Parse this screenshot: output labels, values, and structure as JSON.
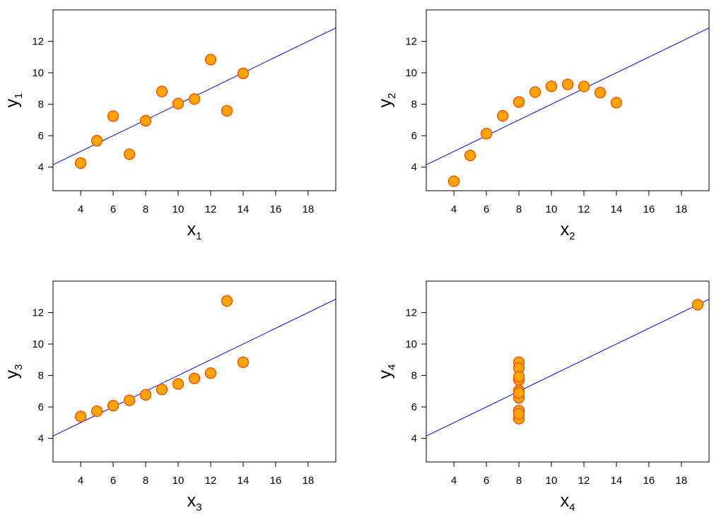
{
  "chart_data": [
    {
      "type": "scatter",
      "x": [
        4,
        5,
        6,
        7,
        8,
        9,
        10,
        11,
        12,
        13,
        14
      ],
      "y": [
        4.26,
        5.68,
        7.24,
        4.82,
        6.95,
        8.81,
        8.04,
        8.33,
        10.84,
        7.58,
        9.96
      ],
      "xlabel": "x",
      "xlabel_sub": "1",
      "ylabel": "y",
      "ylabel_sub": "1",
      "xlim": [
        2.3,
        19.7
      ],
      "ylim": [
        2.5,
        14
      ],
      "xticks": [
        4,
        6,
        8,
        10,
        12,
        14,
        16,
        18
      ],
      "yticks": [
        4,
        6,
        8,
        10,
        12
      ],
      "fit": {
        "intercept": 3.0,
        "slope": 0.5
      },
      "grid": false,
      "colors": {
        "point_fill": "#ffa500",
        "point_edge": "#ff4500",
        "fit_line": "#0000ff"
      }
    },
    {
      "type": "scatter",
      "x": [
        4,
        5,
        6,
        7,
        8,
        9,
        10,
        11,
        12,
        13,
        14
      ],
      "y": [
        3.1,
        4.74,
        6.13,
        7.26,
        8.14,
        8.77,
        9.14,
        9.26,
        9.13,
        8.74,
        8.1
      ],
      "xlabel": "x",
      "xlabel_sub": "2",
      "ylabel": "y",
      "ylabel_sub": "2",
      "xlim": [
        2.3,
        19.7
      ],
      "ylim": [
        2.5,
        14
      ],
      "xticks": [
        4,
        6,
        8,
        10,
        12,
        14,
        16,
        18
      ],
      "yticks": [
        4,
        6,
        8,
        10,
        12
      ],
      "fit": {
        "intercept": 3.0,
        "slope": 0.5
      },
      "grid": false,
      "colors": {
        "point_fill": "#ffa500",
        "point_edge": "#ff4500",
        "fit_line": "#0000ff"
      }
    },
    {
      "type": "scatter",
      "x": [
        4,
        5,
        6,
        7,
        8,
        9,
        10,
        11,
        12,
        13,
        14
      ],
      "y": [
        5.39,
        5.73,
        6.08,
        6.42,
        6.77,
        7.11,
        7.46,
        7.81,
        8.15,
        12.74,
        8.84
      ],
      "xlabel": "x",
      "xlabel_sub": "3",
      "ylabel": "y",
      "ylabel_sub": "3",
      "xlim": [
        2.3,
        19.7
      ],
      "ylim": [
        2.5,
        14
      ],
      "xticks": [
        4,
        6,
        8,
        10,
        12,
        14,
        16,
        18
      ],
      "yticks": [
        4,
        6,
        8,
        10,
        12
      ],
      "fit": {
        "intercept": 3.0,
        "slope": 0.5
      },
      "grid": false,
      "colors": {
        "point_fill": "#ffa500",
        "point_edge": "#ff4500",
        "fit_line": "#0000ff"
      }
    },
    {
      "type": "scatter",
      "x": [
        8,
        8,
        8,
        8,
        8,
        8,
        8,
        8,
        8,
        8,
        19
      ],
      "y": [
        6.58,
        5.76,
        7.71,
        8.84,
        8.47,
        7.04,
        5.25,
        5.56,
        7.91,
        6.89,
        12.5
      ],
      "xlabel": "x",
      "xlabel_sub": "4",
      "ylabel": "y",
      "ylabel_sub": "4",
      "xlim": [
        2.3,
        19.7
      ],
      "ylim": [
        2.5,
        14
      ],
      "xticks": [
        4,
        6,
        8,
        10,
        12,
        14,
        16,
        18
      ],
      "yticks": [
        4,
        6,
        8,
        10,
        12
      ],
      "fit": {
        "intercept": 3.0,
        "slope": 0.5
      },
      "grid": false,
      "colors": {
        "point_fill": "#ffa500",
        "point_edge": "#ff4500",
        "fit_line": "#0000ff"
      }
    }
  ]
}
